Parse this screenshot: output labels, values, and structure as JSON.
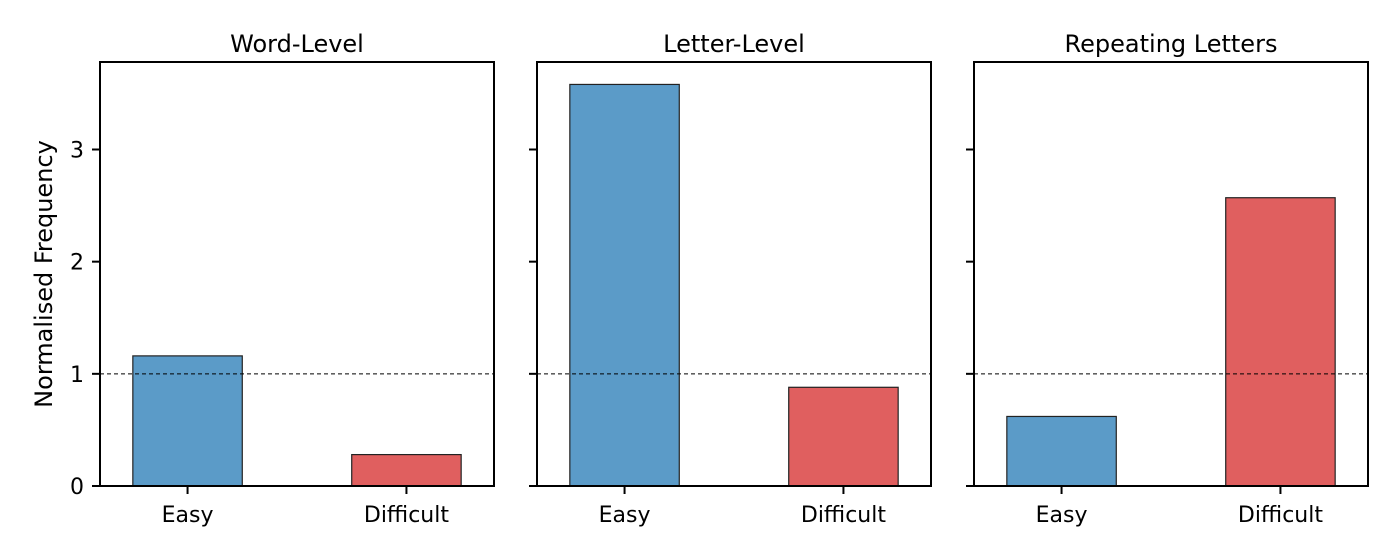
{
  "chart_data": [
    {
      "type": "bar",
      "title": "Word-Level",
      "categories": [
        "Easy",
        "Difficult"
      ],
      "values": [
        1.16,
        0.28
      ],
      "colors": [
        "#5b9bc8",
        "#e05f5f"
      ],
      "ylabel": "Normalised Frequency",
      "ylim": [
        0,
        3.78
      ],
      "yticks": [
        "0",
        "1",
        "2",
        "3"
      ],
      "reference_line": 1,
      "grid": false
    },
    {
      "type": "bar",
      "title": "Letter-Level",
      "categories": [
        "Easy",
        "Difficult"
      ],
      "values": [
        3.58,
        0.88
      ],
      "colors": [
        "#5b9bc8",
        "#e05f5f"
      ],
      "ylabel": "",
      "ylim": [
        0,
        3.78
      ],
      "reference_line": 1,
      "grid": false
    },
    {
      "type": "bar",
      "title": "Repeating Letters",
      "categories": [
        "Easy",
        "Difficult"
      ],
      "values": [
        0.62,
        2.57
      ],
      "colors": [
        "#5b9bc8",
        "#e05f5f"
      ],
      "ylabel": "",
      "ylim": [
        0,
        3.78
      ],
      "reference_line": 1,
      "grid": false
    }
  ]
}
